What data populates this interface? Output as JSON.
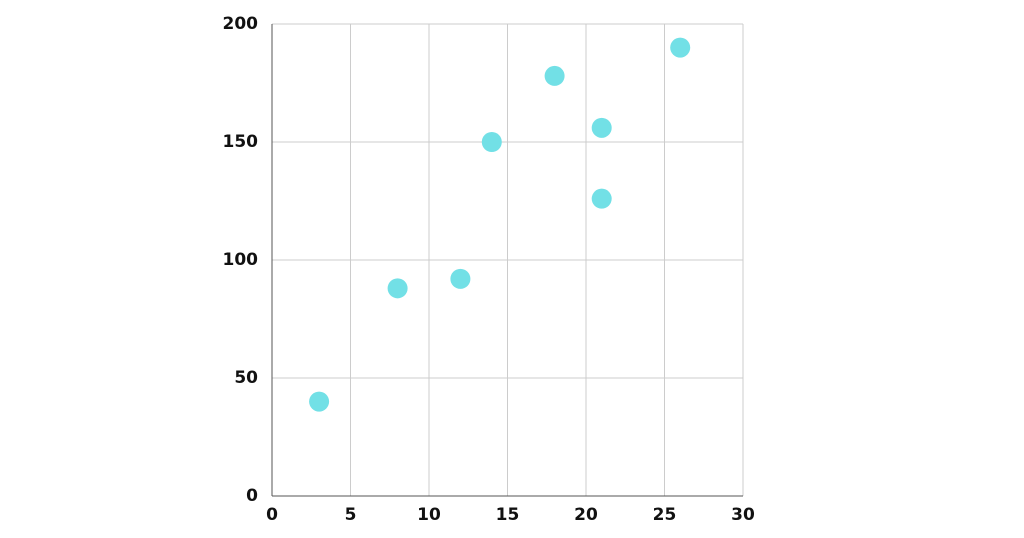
{
  "chart_data": {
    "type": "scatter",
    "x": [
      3,
      8,
      12,
      14,
      18,
      21,
      21,
      26
    ],
    "values": [
      40,
      88,
      92,
      150,
      178,
      156,
      126,
      190
    ],
    "color": "#72e0e6",
    "xlim": [
      0,
      30
    ],
    "xticks": [
      0,
      5,
      10,
      15,
      20,
      25,
      30
    ],
    "ylim": [
      0,
      200
    ],
    "yticks": [
      0,
      50,
      100,
      150,
      200
    ],
    "grid": true
  }
}
